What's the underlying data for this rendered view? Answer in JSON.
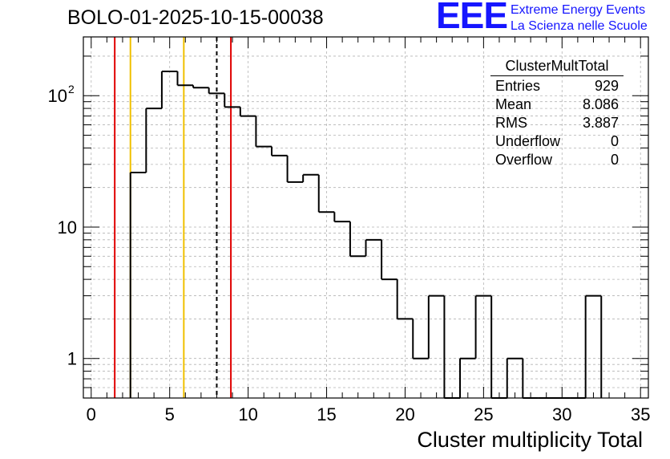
{
  "header": {
    "run_title": "BOLO-01-2025-10-15-00038",
    "logo_text": "EEE",
    "logo_line1": "Extreme Energy Events",
    "logo_line2": "La Scienza nelle Scuole"
  },
  "stats_box": {
    "title": "ClusterMultTotal",
    "rows": [
      {
        "label": "Entries",
        "value": "929"
      },
      {
        "label": "Mean",
        "value": "8.086"
      },
      {
        "label": "RMS",
        "value": "3.887"
      },
      {
        "label": "Underflow",
        "value": "0"
      },
      {
        "label": "Overflow",
        "value": "0"
      }
    ]
  },
  "chart_data": {
    "type": "histogram",
    "xlabel": "Cluster multiplicity Total",
    "ylabel": "",
    "xlim": [
      -0.5,
      35.5
    ],
    "ylim": [
      0.5,
      280
    ],
    "yscale": "log",
    "grid": true,
    "x_ticks": [
      0,
      5,
      10,
      15,
      20,
      25,
      30,
      35
    ],
    "y_tick_labels": [
      {
        "value": 1,
        "label": "1"
      },
      {
        "value": 10,
        "label": "10"
      },
      {
        "value": 100,
        "label": "10",
        "exponent": "2"
      }
    ],
    "bin_width": 1,
    "bins": [
      {
        "x": 3,
        "count": 26
      },
      {
        "x": 4,
        "count": 80
      },
      {
        "x": 5,
        "count": 153
      },
      {
        "x": 6,
        "count": 120
      },
      {
        "x": 7,
        "count": 115
      },
      {
        "x": 8,
        "count": 104
      },
      {
        "x": 9,
        "count": 82
      },
      {
        "x": 10,
        "count": 70
      },
      {
        "x": 11,
        "count": 41
      },
      {
        "x": 12,
        "count": 35
      },
      {
        "x": 13,
        "count": 22
      },
      {
        "x": 14,
        "count": 25
      },
      {
        "x": 15,
        "count": 13
      },
      {
        "x": 16,
        "count": 11
      },
      {
        "x": 17,
        "count": 6
      },
      {
        "x": 18,
        "count": 8
      },
      {
        "x": 19,
        "count": 4
      },
      {
        "x": 20,
        "count": 2
      },
      {
        "x": 21,
        "count": 1
      },
      {
        "x": 22,
        "count": 3
      },
      {
        "x": 23,
        "count": 0
      },
      {
        "x": 24,
        "count": 1
      },
      {
        "x": 25,
        "count": 3
      },
      {
        "x": 26,
        "count": 0
      },
      {
        "x": 27,
        "count": 1
      },
      {
        "x": 28,
        "count": 0
      },
      {
        "x": 29,
        "count": 0
      },
      {
        "x": 30,
        "count": 0
      },
      {
        "x": 31,
        "count": 0
      },
      {
        "x": 32,
        "count": 3
      }
    ],
    "reference_lines": [
      {
        "x": 1.5,
        "color": "#e00000",
        "style": "solid"
      },
      {
        "x": 2.5,
        "color": "#f0c000",
        "style": "solid"
      },
      {
        "x": 5.9,
        "color": "#f0c000",
        "style": "solid"
      },
      {
        "x": 8.0,
        "color": "#000000",
        "style": "dashed"
      },
      {
        "x": 8.9,
        "color": "#e00000",
        "style": "solid"
      }
    ]
  }
}
